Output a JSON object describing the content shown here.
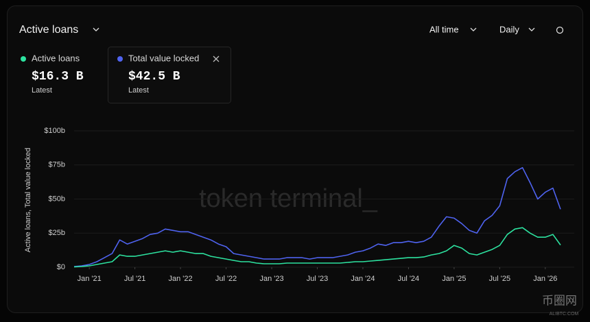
{
  "header": {
    "title": "Active loans",
    "range": "All time",
    "interval": "Daily"
  },
  "legend": [
    {
      "name_ref": "chart_data.series.0.name",
      "latest": "$16.3 B",
      "note": "Latest"
    },
    {
      "name_ref": "chart_data.series.1.name",
      "latest": "$42.5 B",
      "note": "Latest"
    }
  ],
  "watermark": "token terminal_",
  "site_mark": {
    "name": "币圈网",
    "url": "ALIBTC.COM"
  },
  "chart_data": {
    "type": "line",
    "y_label": "Active loans, Total value locked",
    "x": [
      "2020-11",
      "2020-12",
      "2021-01",
      "2021-02",
      "2021-03",
      "2021-04",
      "2021-05",
      "2021-06",
      "2021-07",
      "2021-08",
      "2021-09",
      "2021-10",
      "2021-11",
      "2021-12",
      "2022-01",
      "2022-02",
      "2022-03",
      "2022-04",
      "2022-05",
      "2022-06",
      "2022-07",
      "2022-08",
      "2022-09",
      "2022-10",
      "2022-11",
      "2022-12",
      "2023-01",
      "2023-02",
      "2023-03",
      "2023-04",
      "2023-05",
      "2023-06",
      "2023-07",
      "2023-08",
      "2023-09",
      "2023-10",
      "2023-11",
      "2023-12",
      "2024-01",
      "2024-02",
      "2024-03",
      "2024-04",
      "2024-05",
      "2024-06",
      "2024-07",
      "2024-08",
      "2024-09",
      "2024-10",
      "2024-11",
      "2024-12",
      "2025-01",
      "2025-02",
      "2025-03",
      "2025-04",
      "2025-05",
      "2025-06",
      "2025-07",
      "2025-08",
      "2025-09",
      "2025-10",
      "2025-11",
      "2025-12",
      "2026-01",
      "2026-02",
      "2026-03"
    ],
    "series": [
      {
        "name": "Active loans",
        "color": "#2de3a0",
        "values": [
          0.2,
          0.5,
          1,
          2,
          3,
          4,
          9,
          8,
          8,
          9,
          10,
          11,
          12,
          11,
          12,
          11,
          10,
          10,
          8,
          7,
          6,
          5,
          4,
          4,
          3,
          2.5,
          2.5,
          2.5,
          3,
          3,
          3,
          3,
          3,
          3,
          3,
          3,
          3.5,
          4,
          4,
          4.5,
          5,
          5.5,
          6,
          6.5,
          7,
          7,
          7.5,
          9,
          10,
          12,
          16,
          14,
          10,
          9,
          11,
          13,
          16,
          24,
          28,
          29,
          25,
          22,
          22,
          24,
          16.3
        ]
      },
      {
        "name": "Total value locked",
        "color": "#4f63f0",
        "values": [
          0.5,
          1,
          2,
          4,
          7,
          10,
          20,
          17,
          19,
          21,
          24,
          25,
          28,
          27,
          26,
          26,
          24,
          22,
          20,
          17,
          15,
          10,
          9,
          8,
          7,
          6,
          6,
          6,
          7,
          7,
          7,
          6,
          7,
          7,
          7,
          8,
          9,
          11,
          12,
          14,
          17,
          16,
          18,
          18,
          19,
          18,
          19,
          22,
          30,
          37,
          36,
          32,
          27,
          25,
          34,
          38,
          45,
          65,
          70,
          73,
          62,
          50,
          55,
          58,
          42.5
        ]
      }
    ],
    "xlim": [
      "2020-11",
      "2026-03"
    ],
    "xticks": [
      {
        "value": "2021-01",
        "label": "Jan '21"
      },
      {
        "value": "2021-07",
        "label": "Jul '21"
      },
      {
        "value": "2022-01",
        "label": "Jan '22"
      },
      {
        "value": "2022-07",
        "label": "Jul '22"
      },
      {
        "value": "2023-01",
        "label": "Jan '23"
      },
      {
        "value": "2023-07",
        "label": "Jul '23"
      },
      {
        "value": "2024-01",
        "label": "Jan '24"
      },
      {
        "value": "2024-07",
        "label": "Jul '24"
      },
      {
        "value": "2025-01",
        "label": "Jan '25"
      },
      {
        "value": "2025-07",
        "label": "Jul '25"
      },
      {
        "value": "2026-01",
        "label": "Jan '26"
      }
    ],
    "ylim": [
      0,
      100
    ],
    "yticks": [
      {
        "value": 0,
        "label": "$0"
      },
      {
        "value": 25,
        "label": "$25b"
      },
      {
        "value": 50,
        "label": "$50b"
      },
      {
        "value": 75,
        "label": "$75b"
      },
      {
        "value": 100,
        "label": "$100b"
      }
    ],
    "grid": true
  }
}
